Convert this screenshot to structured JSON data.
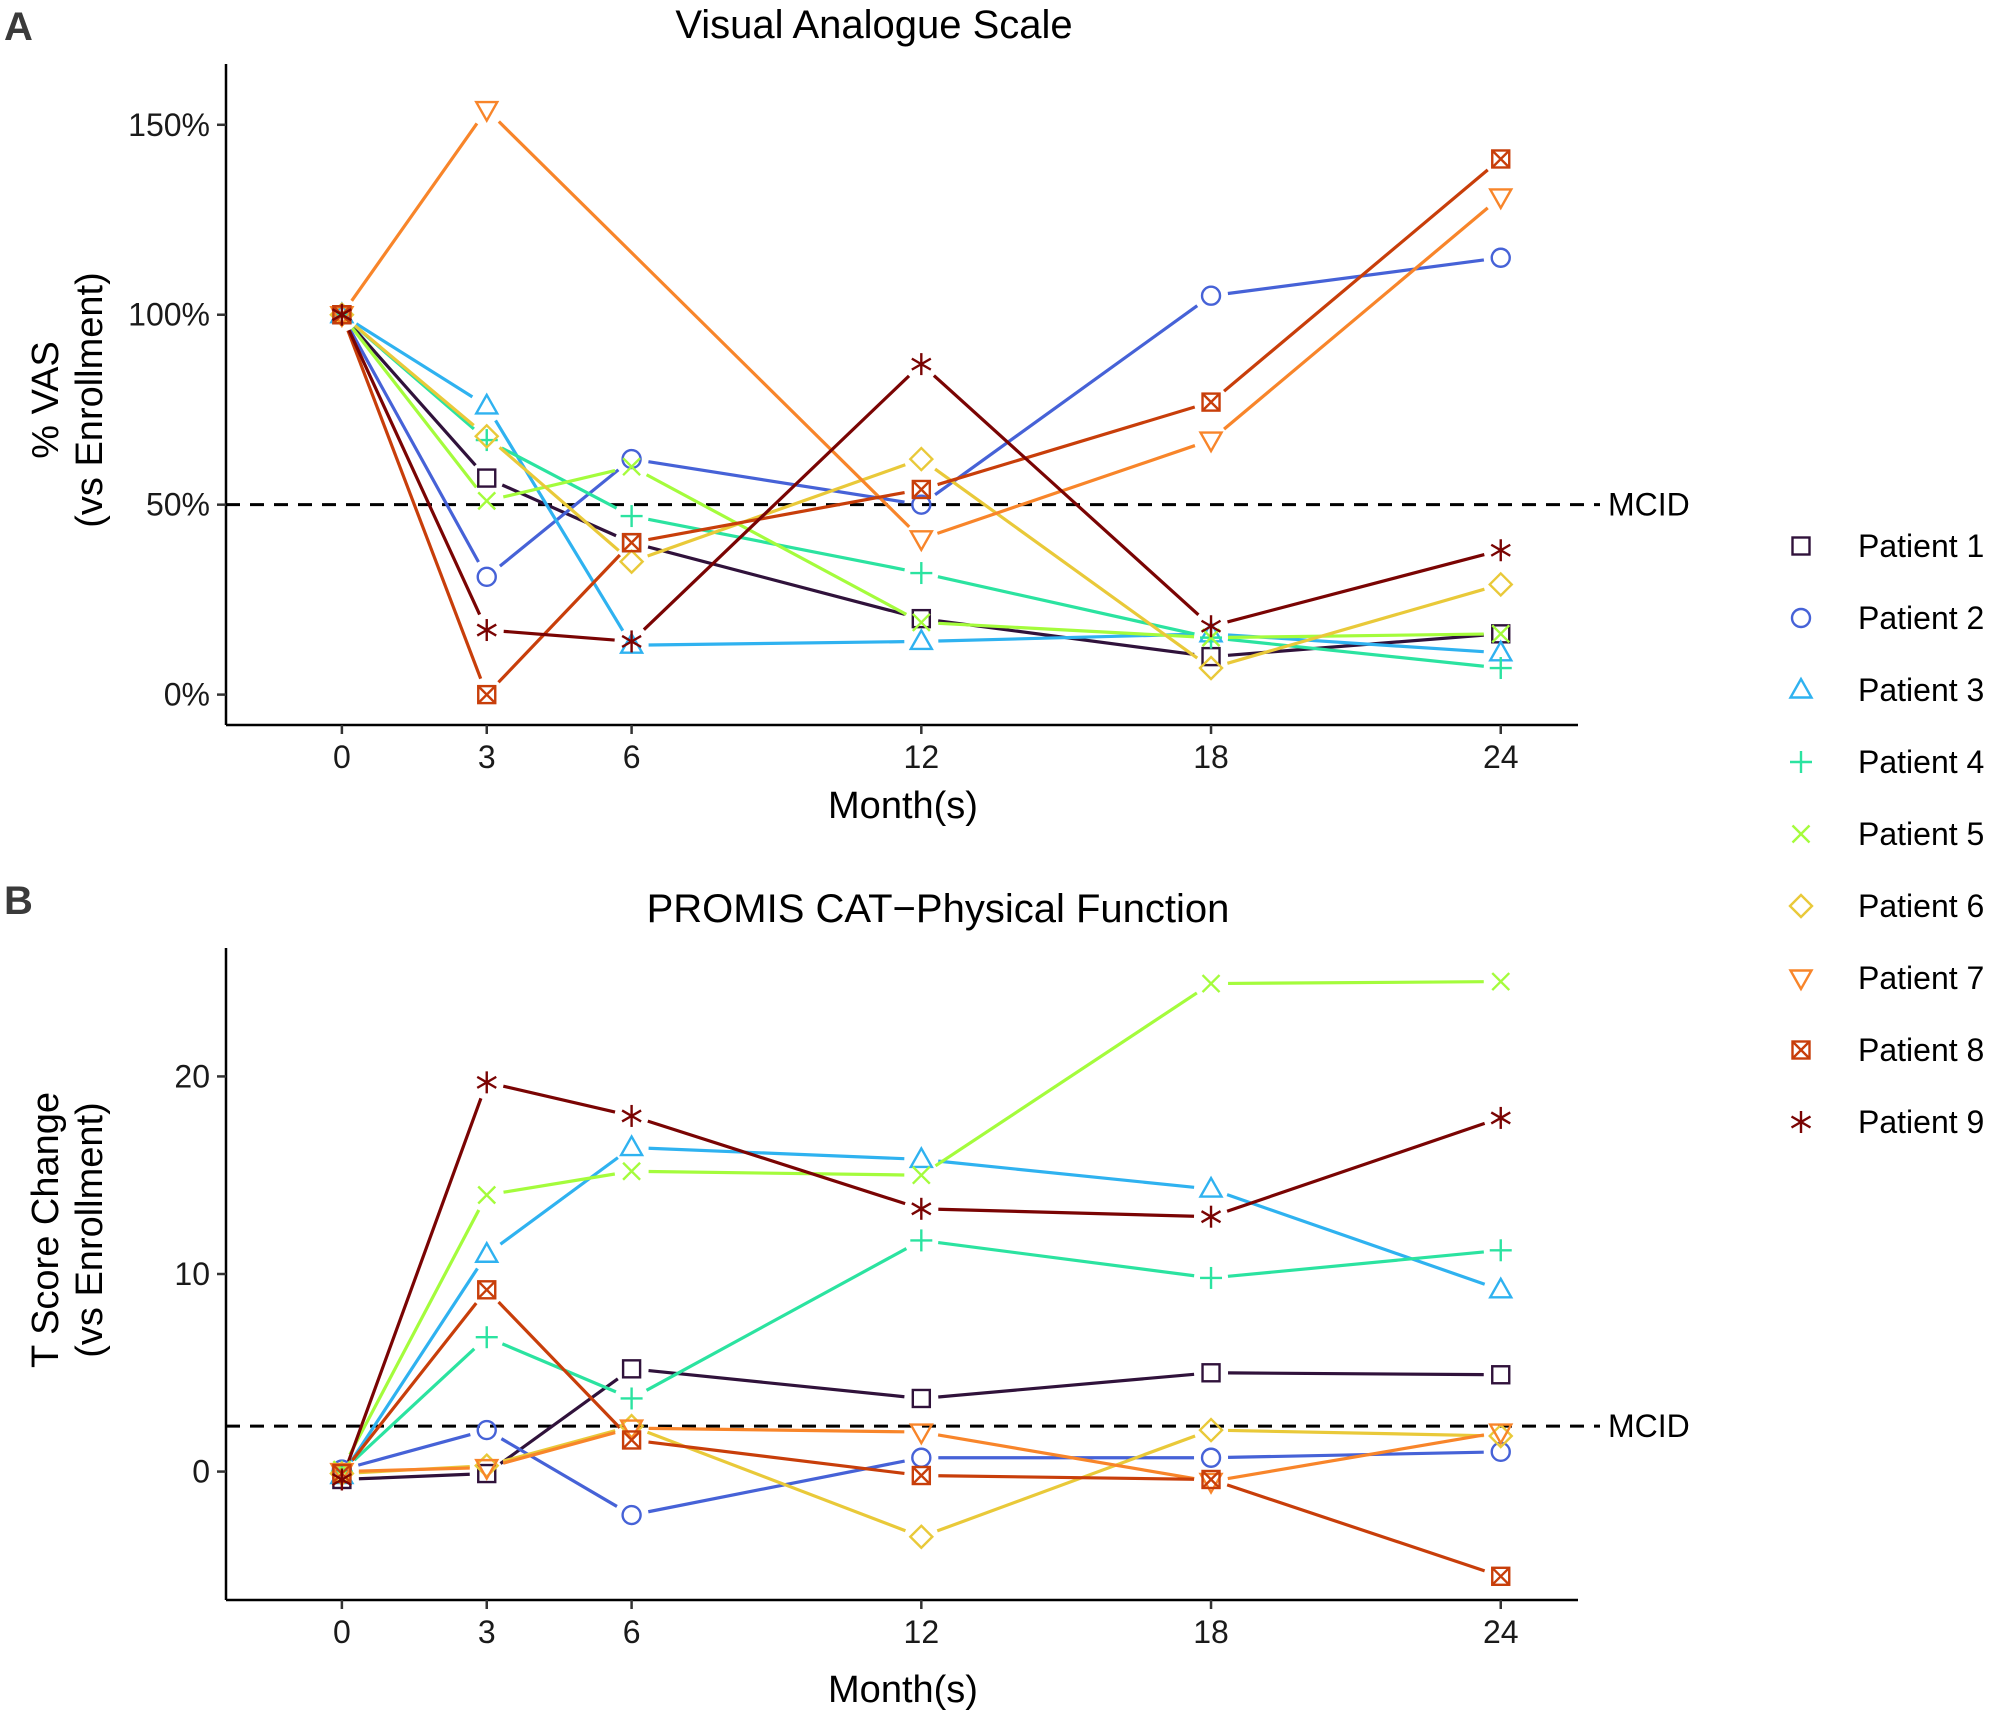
{
  "chart_data": [
    {
      "type": "line",
      "panel": "A",
      "title": "Visual Analogue Scale",
      "xlabel": "Month(s)",
      "ylabel": [
        "% VAS",
        "(vs Enrollment)"
      ],
      "x": [
        0,
        3,
        6,
        12,
        18,
        24
      ],
      "x_tick_labels": [
        "0",
        "3",
        "6",
        "12",
        "18",
        "24"
      ],
      "ylim": [
        -8,
        166
      ],
      "y_ticks": [
        0,
        50,
        100,
        150
      ],
      "y_tick_labels": [
        "0%",
        "50%",
        "100%",
        "150%"
      ],
      "reference_line": {
        "value": 50,
        "label": "MCID"
      },
      "series": [
        {
          "name": "Patient 1",
          "values": [
            100,
            57,
            40,
            20,
            10,
            16
          ]
        },
        {
          "name": "Patient 2",
          "values": [
            100,
            31,
            62,
            50,
            105,
            115
          ]
        },
        {
          "name": "Patient 3",
          "values": [
            100,
            76,
            13,
            14,
            16,
            11
          ]
        },
        {
          "name": "Patient 4",
          "values": [
            100,
            67,
            47,
            32,
            15,
            7
          ]
        },
        {
          "name": "Patient 5",
          "values": [
            100,
            51,
            60,
            19,
            15,
            16
          ]
        },
        {
          "name": "Patient 6",
          "values": [
            100,
            68,
            35,
            62,
            7,
            29
          ]
        },
        {
          "name": "Patient 7",
          "values": [
            100,
            154,
            null,
            41,
            67,
            131
          ]
        },
        {
          "name": "Patient 8",
          "values": [
            100,
            0,
            40,
            54,
            77,
            141
          ]
        },
        {
          "name": "Patient 9",
          "values": [
            100,
            17,
            14,
            87,
            18,
            38
          ]
        }
      ]
    },
    {
      "type": "line",
      "panel": "B",
      "title": "PROMIS CAT−Physical Function",
      "xlabel": "Month(s)",
      "ylabel": [
        "T Score Change",
        "(vs Enrollment)"
      ],
      "x": [
        0,
        3,
        6,
        12,
        18,
        24
      ],
      "x_tick_labels": [
        "0",
        "3",
        "6",
        "12",
        "18",
        "24"
      ],
      "ylim": [
        -6.5,
        26.5
      ],
      "y_ticks": [
        0,
        10,
        20
      ],
      "y_tick_labels": [
        "0",
        "10",
        "20"
      ],
      "reference_line": {
        "value": 2.3,
        "label": "MCID"
      },
      "series": [
        {
          "name": "Patient 1",
          "values": [
            -0.4,
            -0.1,
            5.2,
            3.7,
            5.0,
            4.9
          ]
        },
        {
          "name": "Patient 2",
          "values": [
            0.1,
            2.1,
            -2.2,
            0.7,
            0.7,
            1.0
          ]
        },
        {
          "name": "Patient 3",
          "values": [
            -0.2,
            11.0,
            16.4,
            15.8,
            14.3,
            9.2
          ]
        },
        {
          "name": "Patient 4",
          "values": [
            0.0,
            6.8,
            3.7,
            11.7,
            9.8,
            11.2
          ]
        },
        {
          "name": "Patient 5",
          "values": [
            0.1,
            14.0,
            15.2,
            15.0,
            24.7,
            24.8
          ]
        },
        {
          "name": "Patient 6",
          "values": [
            -0.1,
            0.3,
            2.3,
            -3.3,
            2.1,
            1.8
          ]
        },
        {
          "name": "Patient 7",
          "values": [
            0.0,
            0.2,
            2.2,
            2.0,
            -0.5,
            2.0
          ]
        },
        {
          "name": "Patient 8",
          "values": [
            -0.1,
            9.2,
            1.6,
            -0.2,
            -0.4,
            -5.3
          ]
        },
        {
          "name": "Patient 9",
          "values": [
            -0.4,
            19.7,
            18.0,
            13.3,
            12.9,
            17.9
          ]
        }
      ]
    }
  ],
  "legend": {
    "placement": "right",
    "items": [
      {
        "label": "Patient 1",
        "color": "#30123B",
        "marker": "square"
      },
      {
        "label": "Patient 2",
        "color": "#4662D7",
        "marker": "circle"
      },
      {
        "label": "Patient 3",
        "color": "#2FB2F0",
        "marker": "triangle-up"
      },
      {
        "label": "Patient 4",
        "color": "#2BE3A0",
        "marker": "plus"
      },
      {
        "label": "Patient 5",
        "color": "#A4FC3C",
        "marker": "cross"
      },
      {
        "label": "Patient 6",
        "color": "#E9C939",
        "marker": "diamond"
      },
      {
        "label": "Patient 7",
        "color": "#F8852A",
        "marker": "triangle-down"
      },
      {
        "label": "Patient 8",
        "color": "#C83E0A",
        "marker": "square-cross"
      },
      {
        "label": "Patient 9",
        "color": "#7A0403",
        "marker": "asterisk"
      }
    ]
  }
}
